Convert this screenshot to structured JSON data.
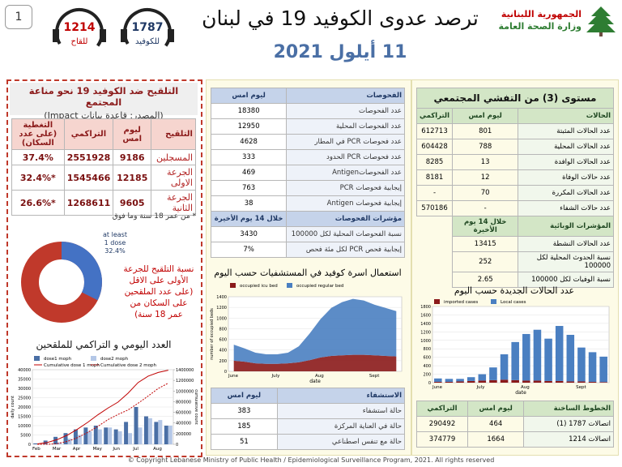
{
  "header": {
    "badge": "1",
    "hotlines": [
      {
        "number": "1214",
        "label": "للقاح"
      },
      {
        "number": "1787",
        "label": "للكوفيد"
      }
    ],
    "title": "ترصد عدوى الكوفيد 19 في لبنان",
    "date": "11 أيلول 2021",
    "org": [
      "الجمهورية اللبنانية",
      "وزارة الصحة العامة"
    ]
  },
  "vaccination": {
    "title": "التلقيح ضد الكوفيد 19  نحو مناعة المجتمع",
    "source": "(المصدر: قاعدة بيانات Impact)",
    "table": {
      "sections": [
        {
          "header": [
            "التلقيح",
            "ليوم امس",
            "التراكمي",
            "التغطية (على عدد السكان)"
          ],
          "rows": [
            [
              "المسجلين",
              "9186",
              "2551928",
              "37.4%"
            ],
            [
              "الجرعة الاولى",
              "12185",
              "1545466",
              "*32.4%"
            ],
            [
              "الجرعة الثانية",
              "9605",
              "1268611",
              "*26.6%"
            ]
          ]
        }
      ]
    },
    "note": "* من عمر 18 سنة وما فوق",
    "donut": {
      "type": "pie",
      "label_lines": [
        "at least",
        "1 dose"
      ],
      "values": [
        32.4
      ],
      "value_labels": [
        "32.4%"
      ],
      "colors": [
        "#4472c4",
        "#c0392b"
      ]
    },
    "donut_caption": "نسبة التلقيح للجرعة الأولى على الاقل (على عدد الملقحين على السكان من عمر 18 سنة)",
    "chart_title": "العدد اليومي و التراكمي للملقحين"
  },
  "tests": {
    "sections": [
      {
        "header": [
          "الفحوصات",
          "ليوم امس"
        ],
        "rows": [
          [
            "عدد الفحوصات",
            "18380"
          ],
          [
            "عدد الفحوصات المحلية",
            "12950"
          ],
          [
            "عدد فحوصات PCR في المطار",
            "4628"
          ],
          [
            "عدد فحوصات PCR الحدود",
            "333"
          ],
          [
            "عدد الفحوصاتAntigen",
            "469"
          ],
          [
            "إيجابية فحوصات PCR",
            "763"
          ],
          [
            "إيجابية فحوصات Antigen",
            "38"
          ]
        ]
      },
      {
        "header": [
          "مؤشرات الفحوصات",
          "خلال 14 يوم الأخيرة"
        ],
        "rows": [
          [
            "نسبة الفحوصات المحلية لكل 100000",
            "3430"
          ],
          [
            "إيجابية فحص PCR لكل مئة فحص",
            "7%"
          ]
        ]
      }
    ]
  },
  "community": {
    "title": "مستوى (3) من التفشي المجتمعي",
    "sections": [
      {
        "header": [
          "الحالات",
          "ليوم امس",
          "التراكمي"
        ],
        "rows": [
          [
            "عدد الحالات المثبتة",
            "801",
            "612713"
          ],
          [
            "عدد الحالات المحلية",
            "788",
            "604428"
          ],
          [
            "عدد الحالات الوافدة",
            "13",
            "8285"
          ],
          [
            "عدد حالات الوفاة",
            "12",
            "8181"
          ],
          [
            "عدد الحالات المكررة",
            "70",
            "-"
          ],
          [
            "عدد حالات الشفاء",
            "-",
            "570186"
          ]
        ]
      },
      {
        "header": [
          "المؤشرات الوبائية",
          "خلال 14 يوم الأخيرة"
        ],
        "rows": [
          [
            "عدد الحالات النشطة",
            "13415"
          ],
          [
            "نسبة الحدوث المحلية لكل 100000",
            "252"
          ],
          [
            "نسبة الوفيات لكل 100000",
            "2.65"
          ]
        ]
      }
    ]
  },
  "hospital": {
    "sections": [
      {
        "header": [
          "الاستشفاء",
          "ليوم امس"
        ],
        "rows": [
          [
            "حالة استشفاء",
            "383"
          ],
          [
            "حالة في العناية المركزة",
            "185"
          ],
          [
            "حالة مع تنفس اصطناعي",
            "51"
          ]
        ]
      }
    ]
  },
  "hotlines_table": {
    "sections": [
      {
        "header": [
          "الخطوط الساخنة",
          "ليوم امس",
          "التراكمي"
        ],
        "rows": [
          [
            "اتصالات 1787 (1)",
            "464",
            "290492"
          ],
          [
            "اتصالات 1214",
            "1664",
            "374779"
          ]
        ]
      }
    ]
  },
  "charts": {
    "beds": {
      "type": "stacked-area",
      "title": "استعمال اسرة كوفيد في المستشفيات حسب اليوم",
      "xlabel": "date",
      "ylabel": "number of occupied beds",
      "categories": [
        "June",
        null,
        null,
        null,
        "July",
        null,
        null,
        null,
        "Aug",
        null,
        null,
        null,
        null,
        "Sept",
        null,
        null
      ],
      "series": [
        {
          "name": "occupied icu bed",
          "color": "#8b1a1a",
          "values": [
            200,
            180,
            150,
            140,
            140,
            150,
            170,
            210,
            260,
            290,
            300,
            310,
            310,
            300,
            290,
            280
          ]
        },
        {
          "name": "occupied regular bed",
          "color": "#4a7fc1",
          "values": [
            300,
            250,
            200,
            180,
            180,
            200,
            300,
            500,
            720,
            900,
            1000,
            1050,
            1020,
            950,
            900,
            850
          ]
        }
      ],
      "ylim": [
        0,
        1400
      ],
      "yticks": [
        0,
        200,
        400,
        600,
        800,
        1000,
        1200,
        1400
      ]
    },
    "cases": {
      "type": "stacked-bar",
      "title": "عدد الحالات الجديدة حسب اليوم",
      "xlabel": "date",
      "categories": [
        "June",
        null,
        null,
        null,
        "July",
        null,
        null,
        null,
        "Aug",
        null,
        null,
        null,
        null,
        "Sept",
        null,
        null
      ],
      "series": [
        {
          "name": "imported cases",
          "color": "#8b1a1a",
          "values": [
            20,
            20,
            30,
            40,
            50,
            60,
            70,
            60,
            50,
            50,
            40,
            40,
            30,
            30,
            20,
            15
          ]
        },
        {
          "name": "Local cases",
          "color": "#4a7fc1",
          "values": [
            80,
            70,
            60,
            90,
            150,
            300,
            600,
            900,
            1100,
            1200,
            1000,
            1300,
            1100,
            800,
            700,
            600
          ]
        }
      ],
      "ylim": [
        0,
        1800
      ],
      "yticks": [
        0,
        200,
        400,
        600,
        800,
        1000,
        1200,
        1400,
        1600,
        1800
      ]
    },
    "vaccines": {
      "type": "bar-line",
      "ylabel": "daily count",
      "y2label": "cumulative count",
      "categories": [
        "Feb",
        null,
        "Mar",
        null,
        "Apr",
        null,
        "May",
        null,
        "Jun",
        null,
        "Jul",
        null,
        "Aug",
        null
      ],
      "series": [
        {
          "name": "dose1 moph",
          "color": "#4a6fa5",
          "kind": "bar",
          "values": [
            500,
            2000,
            4000,
            6000,
            8000,
            9000,
            10000,
            9000,
            8000,
            12000,
            20000,
            15000,
            12000,
            10000
          ]
        },
        {
          "name": "dose2 moph",
          "color": "#b4c7e7",
          "kind": "bar",
          "values": [
            0,
            0,
            1000,
            3000,
            5000,
            7000,
            8000,
            9000,
            7000,
            6000,
            9000,
            14000,
            13000,
            10000
          ]
        },
        {
          "name": "Cumulative dose 1 moph",
          "color": "#c00000",
          "kind": "line",
          "axis": "y2",
          "values": [
            7000,
            35000,
            91000,
            175000,
            287000,
            413000,
            553000,
            679000,
            791000,
            959000,
            1159000,
            1279000,
            1349000,
            1390000
          ]
        },
        {
          "name": "Cumulative dose 2 moph",
          "color": "#c00000",
          "kind": "line",
          "dash": true,
          "axis": "y2",
          "values": [
            0,
            0,
            14000,
            56000,
            126000,
            224000,
            336000,
            462000,
            560000,
            644000,
            770000,
            906000,
            1048000,
            1148000
          ]
        }
      ],
      "ylim": [
        0,
        40000
      ],
      "yticks": [
        0,
        5000,
        10000,
        15000,
        20000,
        25000,
        30000,
        35000,
        40000
      ],
      "y2lim": [
        0,
        1400000
      ],
      "y2ticks": [
        0,
        200000,
        400000,
        600000,
        800000,
        1000000,
        1200000,
        1400000
      ]
    }
  },
  "footer": "© Copyright Lebanese Ministry of Public Health / Epidemiological Surveillance Program, 2021. All rights reserved"
}
